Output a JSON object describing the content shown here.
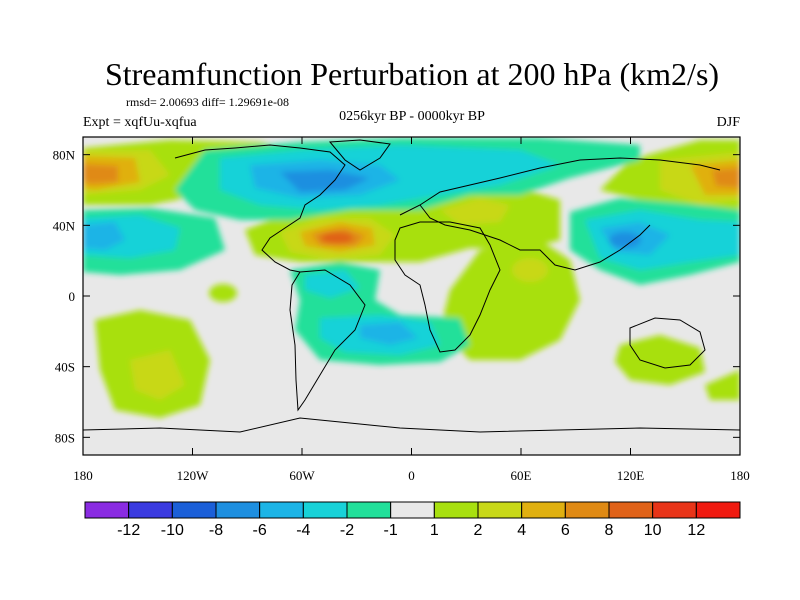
{
  "chart_data": {
    "type": "heatmap",
    "title": "Streamfunction Perturbation at 200 hPa (km2/s)",
    "stats_line": "rmsd= 2.00693 diff= 1.29691e-08",
    "experiment": "Expt = xqfUu-xqfua",
    "period": "0256kyr BP - 0000kyr BP",
    "season": "DJF",
    "lon_range": [
      -180,
      180
    ],
    "lat_range": [
      -90,
      90
    ],
    "x_ticks": [
      {
        "value": -180,
        "label": "180"
      },
      {
        "value": -120,
        "label": "120W"
      },
      {
        "value": -60,
        "label": "60W"
      },
      {
        "value": 0,
        "label": "0"
      },
      {
        "value": 60,
        "label": "60E"
      },
      {
        "value": 120,
        "label": "120E"
      },
      {
        "value": 180,
        "label": "180"
      }
    ],
    "y_ticks": [
      {
        "value": 80,
        "label": "80N"
      },
      {
        "value": 40,
        "label": "40N"
      },
      {
        "value": 0,
        "label": "0"
      },
      {
        "value": -40,
        "label": "40S"
      },
      {
        "value": -80,
        "label": "80S"
      }
    ],
    "colorbar": {
      "levels": [
        "-12",
        "-10",
        "-8",
        "-6",
        "-4",
        "-2",
        "-1",
        "1",
        "2",
        "4",
        "6",
        "8",
        "10",
        "12"
      ],
      "colors": [
        "#8a2be2",
        "#3a3ae0",
        "#1b5fd8",
        "#1e8fe0",
        "#1cb4e6",
        "#18d2d8",
        "#22e09a",
        "#e8e8e8",
        "#a8e010",
        "#c8d818",
        "#e0b010",
        "#e08a14",
        "#e06218",
        "#e83418",
        "#f01a10"
      ]
    },
    "field_features": [
      {
        "name": "north-america-high-lat-low",
        "lon": -85,
        "lat": 50,
        "value": -7
      },
      {
        "name": "north-pacific-high",
        "lon": -165,
        "lat": 65,
        "value": 6
      },
      {
        "name": "siberia-high",
        "lon": 165,
        "lat": 62,
        "value": 6
      },
      {
        "name": "north-atlantic-high",
        "lon": -38,
        "lat": 32,
        "value": 8
      },
      {
        "name": "east-asia-low",
        "lon": 108,
        "lat": 32,
        "value": -6
      },
      {
        "name": "east-pacific-low",
        "lon": -175,
        "lat": 36,
        "value": -4
      },
      {
        "name": "south-atlantic-low",
        "lon": -30,
        "lat": -22,
        "value": -4
      },
      {
        "name": "south-pacific-high",
        "lon": -145,
        "lat": -40,
        "value": 4
      },
      {
        "name": "australia-high",
        "lon": 130,
        "lat": -30,
        "value": 2
      }
    ]
  }
}
